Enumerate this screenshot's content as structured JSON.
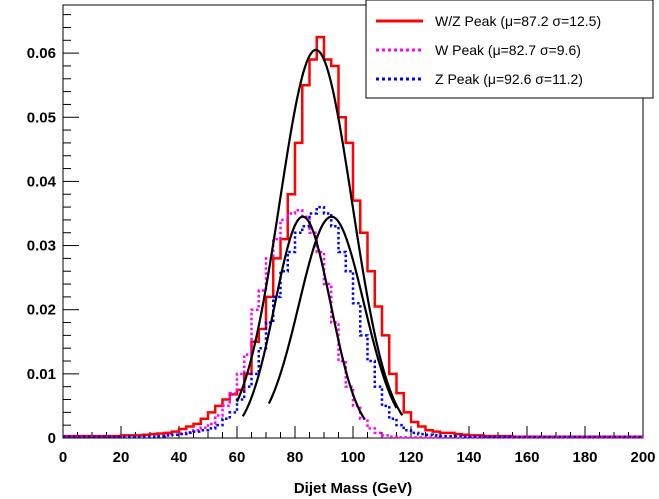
{
  "chart_data": {
    "type": "line",
    "xlabel": "Dijet Mass (GeV)",
    "ylabel": "",
    "xlim": [
      0,
      200
    ],
    "ylim": [
      0,
      0.0675
    ],
    "x_ticks": [
      "0",
      "20",
      "40",
      "60",
      "80",
      "100",
      "120",
      "140",
      "160",
      "180",
      "200"
    ],
    "y_ticks": [
      "0",
      "0.01",
      "0.02",
      "0.03",
      "0.04",
      "0.05",
      "0.06"
    ],
    "grid": false,
    "legend_position": "top-right",
    "bin_width": 2.5,
    "series": [
      {
        "name": "W/Z Peak (μ=87.2 σ=12.5)",
        "color": "#ff0000",
        "style": "solid-step",
        "bin_values": [
          0.0003,
          0.0003,
          0.0003,
          0.0003,
          0.0003,
          0.0003,
          0.0003,
          0.0003,
          0.0004,
          0.0004,
          0.0004,
          0.0005,
          0.0006,
          0.0007,
          0.0008,
          0.001,
          0.0014,
          0.0018,
          0.0022,
          0.003,
          0.004,
          0.005,
          0.006,
          0.0068,
          0.0075,
          0.01,
          0.015,
          0.017,
          0.022,
          0.028,
          0.031,
          0.038,
          0.046,
          0.055,
          0.059,
          0.0625,
          0.059,
          0.058,
          0.05,
          0.046,
          0.037,
          0.032,
          0.026,
          0.0205,
          0.016,
          0.01,
          0.007,
          0.004,
          0.0025,
          0.0018,
          0.0012,
          0.001,
          0.0008,
          0.0008,
          0.0006,
          0.0005,
          0.0004,
          0.0004,
          0.0003,
          0.0003,
          0.0003,
          0.0003,
          0.0002,
          0.0002,
          0.0002,
          0.0002,
          0.0002,
          0.0002,
          0.0002,
          0.0002,
          0.0002,
          0.0002,
          0.0002,
          0.0002,
          0.0002,
          0.0002,
          0.0002,
          0.0002,
          0.0002,
          0.0002
        ]
      },
      {
        "name": "W Peak (μ=82.7 σ=9.6)",
        "color": "#ff00ff",
        "style": "dotted-step",
        "bin_values": [
          0.0002,
          0.0002,
          0.0002,
          0.0002,
          0.0002,
          0.0002,
          0.0002,
          0.0002,
          0.0002,
          0.0002,
          0.0002,
          0.0002,
          0.0002,
          0.0003,
          0.0004,
          0.0005,
          0.0007,
          0.0009,
          0.0012,
          0.0016,
          0.0022,
          0.0035,
          0.005,
          0.007,
          0.01,
          0.013,
          0.02,
          0.023,
          0.028,
          0.031,
          0.034,
          0.035,
          0.0355,
          0.0345,
          0.032,
          0.029,
          0.024,
          0.018,
          0.012,
          0.008,
          0.005,
          0.003,
          0.0015,
          0.0008,
          0.0004,
          0.0002,
          0.0001,
          0.0001,
          0.0001,
          0.0001,
          0.0001,
          0.0001,
          0.0001,
          0.0001,
          0.0001,
          0.0001,
          0.0001,
          0.0001,
          0.0001,
          0.0001,
          0.0001,
          0.0001,
          0.0001,
          0.0001,
          0.0001,
          0.0001,
          0.0001,
          0.0001,
          0.0001,
          0.0001,
          0.0001,
          0.0001,
          0.0001,
          0.0001,
          0.0001,
          0.0001,
          0.0001,
          0.0001,
          0.0001,
          0.0001
        ]
      },
      {
        "name": "Z Peak (μ=92.6 σ=11.2)",
        "color": "#0000ff",
        "style": "dotted-step",
        "bin_values": [
          0.0002,
          0.0002,
          0.0002,
          0.0002,
          0.0002,
          0.0002,
          0.0002,
          0.0002,
          0.0002,
          0.0002,
          0.0002,
          0.0002,
          0.0002,
          0.0003,
          0.0004,
          0.0005,
          0.0006,
          0.0008,
          0.001,
          0.0012,
          0.0015,
          0.002,
          0.003,
          0.004,
          0.006,
          0.008,
          0.01,
          0.014,
          0.018,
          0.022,
          0.026,
          0.029,
          0.032,
          0.033,
          0.035,
          0.036,
          0.035,
          0.033,
          0.029,
          0.026,
          0.021,
          0.016,
          0.012,
          0.008,
          0.005,
          0.003,
          0.002,
          0.0012,
          0.0008,
          0.0006,
          0.0005,
          0.0004,
          0.0003,
          0.0003,
          0.0003,
          0.0002,
          0.0002,
          0.0002,
          0.0002,
          0.0002,
          0.0002,
          0.0002,
          0.0002,
          0.0002,
          0.0002,
          0.0002,
          0.0002,
          0.0002,
          0.0002,
          0.0002,
          0.0002,
          0.0002,
          0.0002,
          0.0002,
          0.0002,
          0.0002,
          0.0002,
          0.0002,
          0.0002,
          0.0002
        ]
      }
    ],
    "fits": [
      {
        "color": "#000000",
        "amplitude": 0.0605,
        "mean": 87.2,
        "sigma": 12.5,
        "range": [
          60,
          117
        ]
      },
      {
        "color": "#000000",
        "amplitude": 0.0345,
        "mean": 82.7,
        "sigma": 9.6,
        "range": [
          62,
          104
        ]
      },
      {
        "color": "#000000",
        "amplitude": 0.0345,
        "mean": 92.6,
        "sigma": 11.2,
        "range": [
          71,
          115
        ]
      }
    ]
  }
}
